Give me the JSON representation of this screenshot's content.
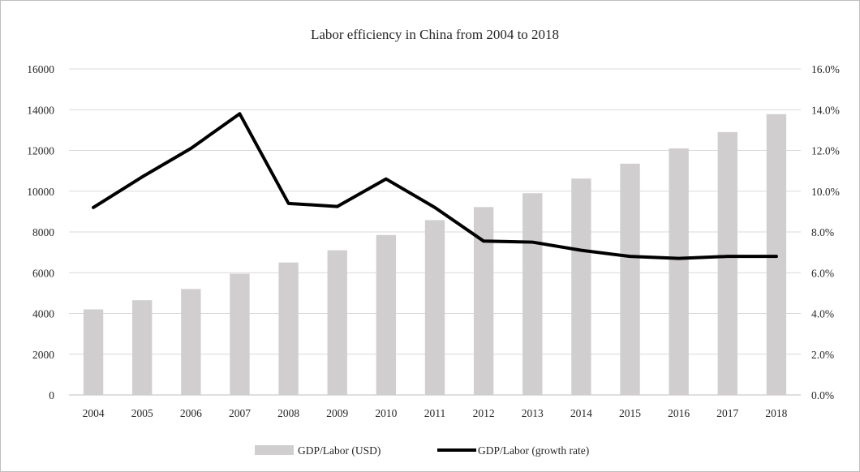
{
  "chart_data": {
    "type": "bar+line",
    "title": "Labor efficiency in China from 2004 to 2018",
    "categories": [
      "2004",
      "2005",
      "2006",
      "2007",
      "2008",
      "2009",
      "2010",
      "2011",
      "2012",
      "2013",
      "2014",
      "2015",
      "2016",
      "2017",
      "2018"
    ],
    "series": [
      {
        "name": "GDP/Labor (USD)",
        "type": "bar",
        "axis": "left",
        "color": "#d0cece",
        "values": [
          4200,
          4650,
          5200,
          5950,
          6500,
          7100,
          7850,
          8580,
          9220,
          9900,
          10620,
          11350,
          12100,
          12900,
          13780
        ]
      },
      {
        "name": "GDP/Labor (growth rate)",
        "type": "line",
        "axis": "right",
        "color": "#000000",
        "values": [
          9.2,
          10.7,
          12.1,
          13.8,
          9.4,
          9.25,
          10.6,
          9.2,
          7.55,
          7.5,
          7.1,
          6.8,
          6.7,
          6.8,
          6.8
        ]
      }
    ],
    "y_left": {
      "min": 0,
      "max": 16000,
      "step": 2000,
      "tick_labels": [
        "0",
        "2000",
        "4000",
        "6000",
        "8000",
        "10000",
        "12000",
        "14000",
        "16000"
      ]
    },
    "y_right": {
      "min": 0,
      "max": 16,
      "step": 2,
      "tick_labels": [
        "0.0%",
        "2.0%",
        "4.0%",
        "6.0%",
        "8.0%",
        "10.0%",
        "12.0%",
        "14.0%",
        "16.0%"
      ]
    },
    "grid": true,
    "gridline_color": "#d9d9d9",
    "legend_position": "bottom",
    "xlabel": "",
    "ylabel": ""
  }
}
